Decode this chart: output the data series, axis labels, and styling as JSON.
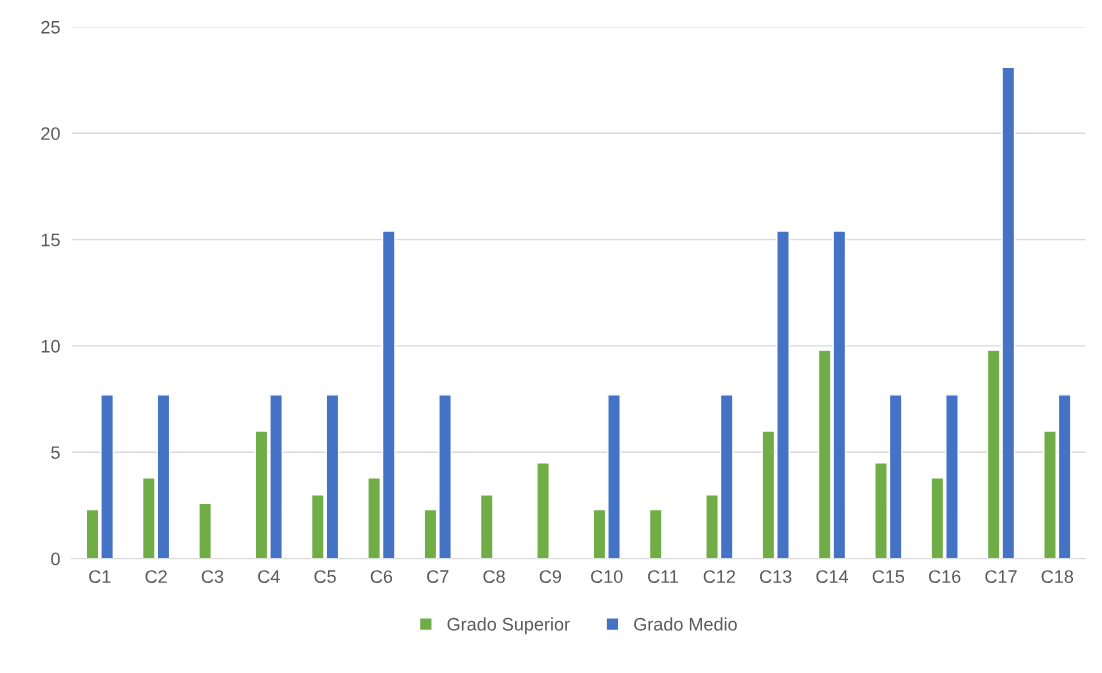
{
  "chart_data": {
    "type": "bar",
    "categories": [
      "C1",
      "C2",
      "C3",
      "C4",
      "C5",
      "C6",
      "C7",
      "C8",
      "C9",
      "C10",
      "C11",
      "C12",
      "C13",
      "C14",
      "C15",
      "C16",
      "C17",
      "C18"
    ],
    "series": [
      {
        "name": "Grado Superior",
        "color": "#70ad47",
        "values": [
          2.3,
          3.8,
          2.6,
          6,
          3,
          3.8,
          2.3,
          3,
          4.5,
          2.3,
          2.3,
          3,
          6,
          9.8,
          4.5,
          3.8,
          9.8,
          6
        ]
      },
      {
        "name": "Grado Medio",
        "color": "#4472c4",
        "values": [
          7.7,
          7.7,
          null,
          7.7,
          7.7,
          15.4,
          7.7,
          null,
          null,
          7.7,
          null,
          7.7,
          15.4,
          15.4,
          7.7,
          7.7,
          23.1,
          7.7
        ]
      }
    ],
    "ylim": [
      0,
      25
    ],
    "yticks": [
      0,
      5,
      10,
      15,
      20,
      25
    ],
    "grid": "y",
    "legend": "bottom"
  }
}
